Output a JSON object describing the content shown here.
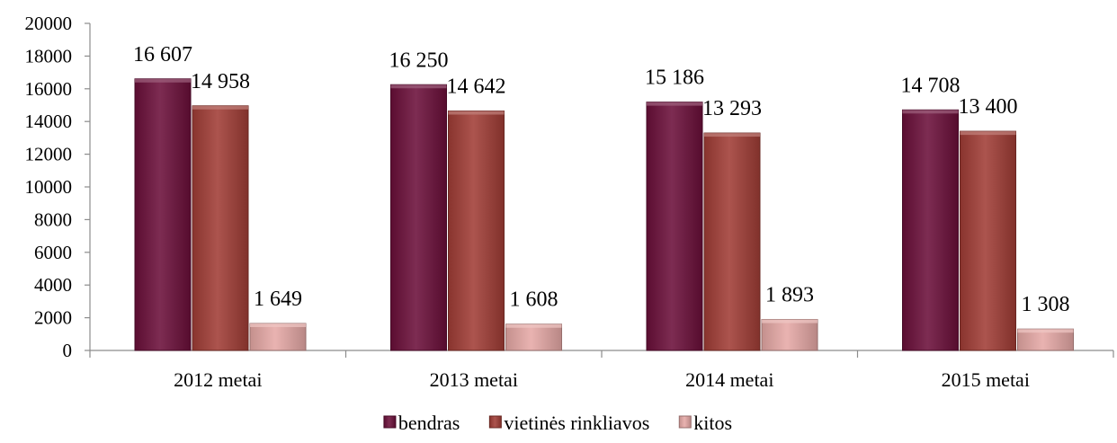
{
  "chart_data": {
    "type": "bar",
    "title": "",
    "xlabel": "",
    "ylabel": "",
    "categories": [
      "2012 metai",
      "2013 metai",
      "2014 metai",
      "2015 metai"
    ],
    "series": [
      {
        "name": "bendras",
        "values": [
          16607,
          16250,
          15186,
          14708
        ],
        "labels": [
          "16 607",
          "16 250",
          "15 186",
          "14 708"
        ],
        "color": "#6B0F3A"
      },
      {
        "name": "vietinės rinkliavos",
        "values": [
          14958,
          14642,
          13293,
          13400
        ],
        "labels": [
          "14 958",
          "14 642",
          "13 293",
          "13 400"
        ],
        "color": "#A13D36"
      },
      {
        "name": "kitos",
        "values": [
          1649,
          1608,
          1893,
          1308
        ],
        "labels": [
          "1 649",
          "1 608",
          "1 893",
          "1 308"
        ],
        "color": "#E6A9A6"
      }
    ],
    "ylim": [
      0,
      20000
    ],
    "yticks": [
      0,
      2000,
      4000,
      6000,
      8000,
      10000,
      12000,
      14000,
      16000,
      18000,
      20000
    ],
    "grid": false,
    "legend_position": "bottom"
  }
}
